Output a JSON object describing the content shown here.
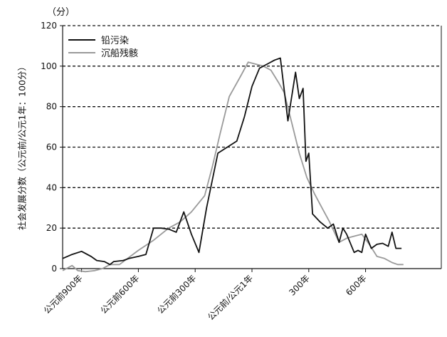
{
  "chart_data": {
    "type": "line",
    "unit_label": "（分）",
    "ylabel": "社会发展分数（公元前/公元1年：100分）",
    "xlabel": "",
    "ylim": [
      0,
      120
    ],
    "yticks": [
      0,
      20,
      40,
      60,
      80,
      100,
      120
    ],
    "grid": "horizontal dashed",
    "legend_position": "top-left",
    "xlim": [
      -1000,
      1000
    ],
    "xticks": [
      {
        "x": -900,
        "label": "公元前900年"
      },
      {
        "x": -600,
        "label": "公元前600年"
      },
      {
        "x": -300,
        "label": "公元前300年"
      },
      {
        "x": 0,
        "label": "公元前/公元1年"
      },
      {
        "x": 300,
        "label": "300年"
      },
      {
        "x": 600,
        "label": "600年"
      }
    ],
    "series": [
      {
        "name": "铅污染",
        "color": "#111111",
        "points": [
          [
            -1000,
            5
          ],
          [
            -950,
            7
          ],
          [
            -900,
            8.5
          ],
          [
            -850,
            6
          ],
          [
            -820,
            4
          ],
          [
            -780,
            3.5
          ],
          [
            -750,
            2
          ],
          [
            -730,
            3.5
          ],
          [
            -680,
            4
          ],
          [
            -650,
            5
          ],
          [
            -600,
            6
          ],
          [
            -560,
            7
          ],
          [
            -520,
            20
          ],
          [
            -480,
            20
          ],
          [
            -440,
            19.5
          ],
          [
            -400,
            18
          ],
          [
            -360,
            28
          ],
          [
            -320,
            17
          ],
          [
            -280,
            8
          ],
          [
            -240,
            30
          ],
          [
            -180,
            57
          ],
          [
            -130,
            60
          ],
          [
            -80,
            63
          ],
          [
            -40,
            75
          ],
          [
            0,
            90
          ],
          [
            40,
            99
          ],
          [
            80,
            101
          ],
          [
            120,
            103
          ],
          [
            150,
            104
          ],
          [
            190,
            73
          ],
          [
            230,
            97
          ],
          [
            250,
            84
          ],
          [
            270,
            89
          ],
          [
            285,
            53
          ],
          [
            300,
            57
          ],
          [
            320,
            27
          ],
          [
            360,
            23
          ],
          [
            400,
            20
          ],
          [
            430,
            22
          ],
          [
            460,
            13
          ],
          [
            480,
            20
          ],
          [
            500,
            17
          ],
          [
            540,
            8
          ],
          [
            560,
            9
          ],
          [
            580,
            8
          ],
          [
            600,
            17
          ],
          [
            630,
            10
          ],
          [
            660,
            12
          ],
          [
            690,
            12.5
          ],
          [
            720,
            11
          ],
          [
            740,
            18
          ],
          [
            760,
            10
          ],
          [
            790,
            10
          ]
        ]
      },
      {
        "name": "沉船残骸",
        "color": "#9a9a9a",
        "points": [
          [
            -1000,
            -1
          ],
          [
            -950,
            1.5
          ],
          [
            -920,
            -1
          ],
          [
            -880,
            -1.5
          ],
          [
            -830,
            -1
          ],
          [
            -790,
            0
          ],
          [
            -750,
            2
          ],
          [
            -700,
            2
          ],
          [
            -600,
            9
          ],
          [
            -520,
            14
          ],
          [
            -440,
            20
          ],
          [
            -380,
            23
          ],
          [
            -320,
            28
          ],
          [
            -250,
            36
          ],
          [
            -210,
            50
          ],
          [
            -170,
            66
          ],
          [
            -120,
            85
          ],
          [
            -60,
            95
          ],
          [
            -20,
            102
          ],
          [
            20,
            101
          ],
          [
            60,
            100
          ],
          [
            100,
            98
          ],
          [
            140,
            92
          ],
          [
            170,
            87
          ],
          [
            210,
            72
          ],
          [
            250,
            57
          ],
          [
            290,
            45
          ],
          [
            330,
            37
          ],
          [
            370,
            30
          ],
          [
            410,
            23
          ],
          [
            460,
            13
          ],
          [
            500,
            15
          ],
          [
            540,
            16
          ],
          [
            580,
            17
          ],
          [
            620,
            12
          ],
          [
            660,
            6
          ],
          [
            700,
            5
          ],
          [
            740,
            3
          ],
          [
            770,
            2
          ],
          [
            800,
            2
          ]
        ]
      }
    ]
  }
}
